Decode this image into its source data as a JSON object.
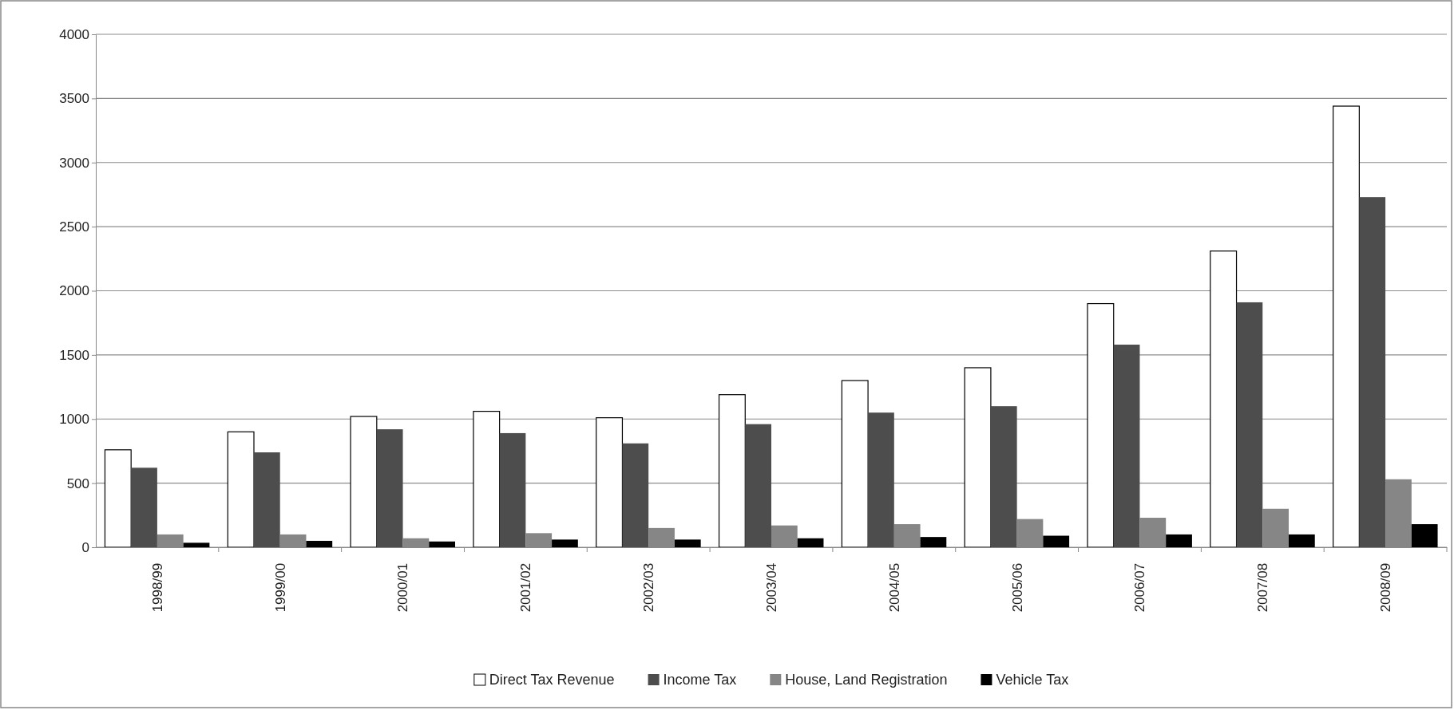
{
  "chart_data": {
    "type": "bar",
    "categories": [
      "1998/99",
      "1999/00",
      "2000/01",
      "2001/02",
      "2002/03",
      "2003/04",
      "2004/05",
      "2005/06",
      "2006/07",
      "2007/08",
      "2008/09"
    ],
    "series": [
      {
        "name": "Direct Tax Revenue",
        "color": "#ffffff",
        "values": [
          760,
          900,
          1020,
          1060,
          1010,
          1190,
          1300,
          1400,
          1900,
          2310,
          3440
        ]
      },
      {
        "name": "Income Tax",
        "color": "#4d4d4d",
        "values": [
          620,
          740,
          920,
          890,
          810,
          960,
          1050,
          1100,
          1580,
          1910,
          2730
        ]
      },
      {
        "name": "House, Land Registration",
        "color": "#868686",
        "values": [
          100,
          100,
          70,
          110,
          150,
          170,
          180,
          220,
          230,
          300,
          530
        ]
      },
      {
        "name": "Vehicle Tax",
        "color": "#000000",
        "values": [
          35,
          50,
          45,
          60,
          60,
          70,
          80,
          90,
          100,
          100,
          180
        ]
      }
    ],
    "ylim": [
      0,
      4000
    ],
    "yticks": [
      0,
      500,
      1000,
      1500,
      2000,
      2500,
      3000,
      3500,
      4000
    ],
    "grid": "y",
    "legend": "bottom"
  }
}
